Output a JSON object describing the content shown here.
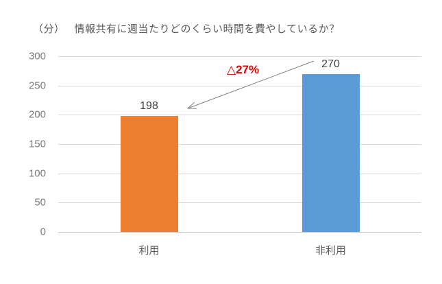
{
  "title": {
    "unit_label": "（分）",
    "text": "情報共有に週当たりどのくらい時間を費やしているか？"
  },
  "annotation": {
    "text": "△27%",
    "color": "#e00000"
  },
  "chart_data": {
    "type": "bar",
    "title": "情報共有に週当たりどのくらい時間を費やしているか？",
    "unit_label": "（分）",
    "categories": [
      "利用",
      "非利用"
    ],
    "values": [
      198,
      270
    ],
    "data_labels": [
      "198",
      "270"
    ],
    "bar_colors": [
      "#ED7D31",
      "#5B9BD5"
    ],
    "xlabel": "",
    "ylabel": "",
    "ylim": [
      0,
      300
    ],
    "yticks": [
      0,
      50,
      100,
      150,
      200,
      250,
      300
    ],
    "grid": true,
    "legend": "none",
    "annotation": {
      "text": "△27%",
      "meaning": "27% decrease from 非利用 (270) to 利用 (198)",
      "color": "#e00000"
    }
  },
  "colors": {
    "bar_use": "#ED7D31",
    "bar_nonuse": "#5B9BD5",
    "gridline": "#d9d9d9",
    "axis_line": "#bfbfbf",
    "text_gray": "#595959",
    "data_label": "#404040",
    "arrow": "#808080"
  }
}
